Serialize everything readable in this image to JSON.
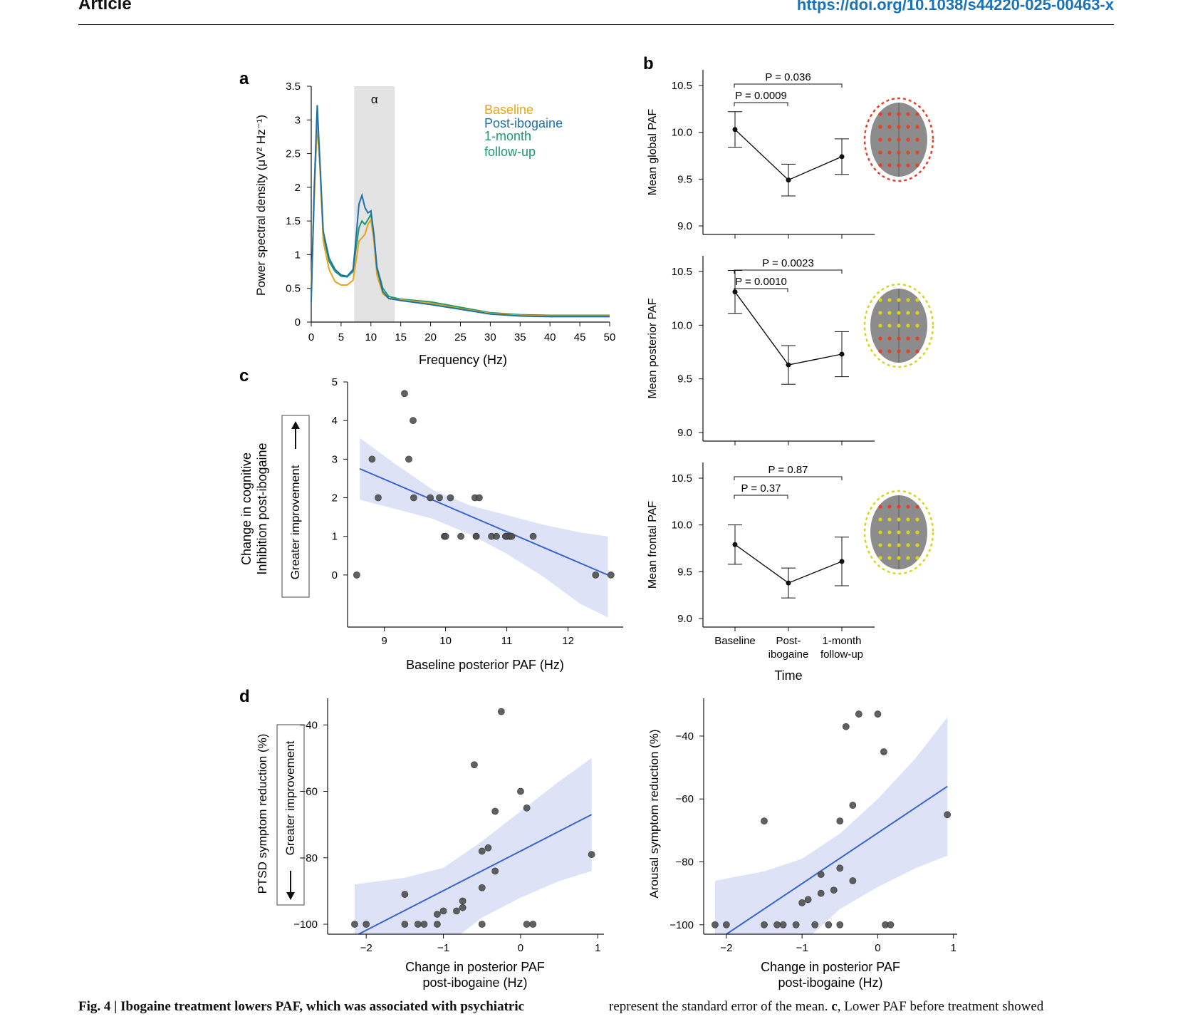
{
  "header": {
    "journal": "Article",
    "doi": "https://doi.org/10.1038/s44220-025-00463-x"
  },
  "panels": {
    "a": "a",
    "b": "b",
    "c": "c",
    "d": "d"
  },
  "chart_data": [
    {
      "panel": "a",
      "type": "line",
      "xlabel": "Frequency (Hz)",
      "ylabel": "Power spectral density (μV² Hz⁻¹)",
      "xlim": [
        0,
        50
      ],
      "ylim": [
        0,
        3.5
      ],
      "xticks": [
        0,
        5,
        10,
        15,
        20,
        25,
        30,
        35,
        40,
        45,
        50
      ],
      "yticks": [
        0,
        0.5,
        1,
        1.5,
        2,
        2.5,
        3,
        3.5
      ],
      "ytick_labels": [
        "0",
        "0.5",
        "1",
        "1.5",
        "2",
        "2.5",
        "3",
        "3.5"
      ],
      "band": {
        "label": "α",
        "from": 7.2,
        "to": 14
      },
      "legend": [
        "Baseline",
        "Post-ibogaine",
        "1-month",
        "follow-up"
      ],
      "colors": {
        "baseline": "#e8a317",
        "post": "#1f6fa8",
        "followup": "#1b9a6e",
        "band": "#e3e3e3"
      },
      "series": [
        {
          "name": "Baseline",
          "x": [
            0,
            0.5,
            1,
            1.5,
            2,
            3,
            4,
            5,
            6,
            7,
            7.5,
            8,
            8.5,
            9,
            9.5,
            10,
            10.5,
            11,
            12,
            13,
            15,
            20,
            25,
            30,
            35,
            40,
            45,
            50
          ],
          "values": [
            0.5,
            1.8,
            3.05,
            2.2,
            1.2,
            0.78,
            0.6,
            0.55,
            0.55,
            0.62,
            0.9,
            1.2,
            1.25,
            1.3,
            1.45,
            1.52,
            1.2,
            0.7,
            0.42,
            0.35,
            0.33,
            0.28,
            0.2,
            0.13,
            0.1,
            0.09,
            0.09,
            0.09
          ]
        },
        {
          "name": "Post-ibogaine",
          "x": [
            0,
            0.5,
            1,
            1.5,
            2,
            3,
            4,
            5,
            6,
            7,
            7.5,
            8,
            8.5,
            9,
            9.5,
            10,
            10.5,
            11,
            12,
            13,
            15,
            20,
            25,
            30,
            35,
            40,
            45,
            50
          ],
          "values": [
            0.3,
            2.0,
            3.22,
            2.3,
            1.35,
            0.95,
            0.78,
            0.7,
            0.68,
            0.78,
            1.25,
            1.75,
            1.88,
            1.7,
            1.62,
            1.65,
            1.3,
            0.8,
            0.45,
            0.35,
            0.32,
            0.26,
            0.19,
            0.12,
            0.09,
            0.08,
            0.08,
            0.08
          ]
        },
        {
          "name": "1-month follow-up",
          "x": [
            0,
            0.5,
            1,
            1.5,
            2,
            3,
            4,
            5,
            6,
            7,
            7.5,
            8,
            8.5,
            9,
            9.5,
            10,
            10.5,
            11,
            12,
            13,
            15,
            20,
            25,
            30,
            35,
            40,
            45,
            50
          ],
          "values": [
            0.45,
            1.9,
            2.95,
            2.25,
            1.3,
            0.9,
            0.75,
            0.68,
            0.67,
            0.75,
            1.1,
            1.4,
            1.5,
            1.45,
            1.52,
            1.6,
            1.3,
            0.82,
            0.5,
            0.38,
            0.34,
            0.3,
            0.22,
            0.14,
            0.11,
            0.1,
            0.1,
            0.1
          ]
        }
      ]
    },
    {
      "panel": "b",
      "type": "line",
      "xlabel": "Time",
      "categories": [
        "Baseline",
        "Post-\nibogaine",
        "1-month\nfollow-up"
      ],
      "ylim": [
        9.0,
        10.5
      ],
      "yticks": [
        "9.0",
        "9.5",
        "10.0",
        "10.5"
      ],
      "subplots": [
        {
          "ylabel": "Mean global PAF",
          "values": [
            10.03,
            9.49,
            9.74
          ],
          "sem": [
            0.19,
            0.17,
            0.19
          ],
          "brackets": [
            {
              "label": "P = 0.0009",
              "pair": [
                0,
                1
              ]
            },
            {
              "label": "P = 0.036",
              "pair": [
                0,
                2
              ]
            }
          ],
          "electrodes": "global"
        },
        {
          "ylabel": "Mean posterior PAF",
          "values": [
            10.31,
            9.63,
            9.73
          ],
          "sem": [
            0.2,
            0.18,
            0.21
          ],
          "brackets": [
            {
              "label": "P = 0.0010",
              "pair": [
                0,
                1
              ]
            },
            {
              "label": "P = 0.0023",
              "pair": [
                0,
                2
              ]
            }
          ],
          "electrodes": "posterior"
        },
        {
          "ylabel": "Mean frontal PAF",
          "values": [
            9.79,
            9.38,
            9.61
          ],
          "sem": [
            0.21,
            0.16,
            0.26
          ],
          "brackets": [
            {
              "label": "P  = 0.37",
              "pair": [
                0,
                1
              ]
            },
            {
              "label": "P = 0.87",
              "pair": [
                0,
                2
              ]
            }
          ],
          "electrodes": "frontal"
        }
      ]
    },
    {
      "panel": "c",
      "type": "scatter",
      "xlabel": "Baseline posterior PAF (Hz)",
      "ylabel": [
        "Change in cognitive",
        "Inhibition post-ibogaine"
      ],
      "arrow_label": "Greater improvement",
      "xticks": [
        9,
        10,
        11,
        12
      ],
      "yticks": [
        0,
        1,
        2,
        3,
        4,
        5
      ],
      "xlim": [
        8.4,
        12.9
      ],
      "ylim": [
        -1.35,
        5
      ],
      "points": [
        [
          8.55,
          0
        ],
        [
          8.8,
          3
        ],
        [
          8.9,
          2
        ],
        [
          9.33,
          4.7
        ],
        [
          9.4,
          3
        ],
        [
          9.47,
          4
        ],
        [
          9.48,
          2
        ],
        [
          9.75,
          2
        ],
        [
          9.9,
          2
        ],
        [
          9.98,
          1
        ],
        [
          10.0,
          1
        ],
        [
          10.08,
          2
        ],
        [
          10.25,
          1
        ],
        [
          10.48,
          2
        ],
        [
          10.5,
          1
        ],
        [
          10.5,
          1
        ],
        [
          10.55,
          2
        ],
        [
          10.75,
          1
        ],
        [
          10.83,
          1
        ],
        [
          10.98,
          1
        ],
        [
          11.0,
          1
        ],
        [
          11.05,
          1
        ],
        [
          11.08,
          1
        ],
        [
          11.43,
          1
        ],
        [
          12.45,
          0
        ],
        [
          12.7,
          0
        ]
      ],
      "fit": {
        "x": [
          8.6,
          12.65
        ],
        "y": [
          2.75,
          0.0
        ]
      },
      "ci": {
        "x": [
          8.6,
          9.2,
          9.8,
          10.4,
          11.0,
          11.6,
          12.2,
          12.65
        ],
        "lower": [
          1.95,
          1.7,
          1.45,
          1.05,
          0.55,
          -0.05,
          -0.75,
          -1.1
        ],
        "upper": [
          3.55,
          2.85,
          2.2,
          1.8,
          1.55,
          1.3,
          1.1,
          1.0
        ]
      },
      "colors": {
        "point": "#505050",
        "fit": "#3a63cf",
        "ci": "#dde2f7"
      }
    },
    {
      "panel": "d-left",
      "type": "scatter",
      "xlabel": [
        "Change in posterior PAF",
        "post-ibogaine (Hz)"
      ],
      "ylabel": "PTSD symptom reduction (%)",
      "arrow_label": "Greater improvement",
      "xticks": [
        -2,
        -1,
        0,
        1
      ],
      "yticks": [
        -40,
        -60,
        -80,
        -100
      ],
      "xticks_labels": [
        "−2",
        "−1",
        "0",
        "1"
      ],
      "yticks_labels": [
        "−40",
        "−60",
        "−80",
        "−100"
      ],
      "xlim": [
        -2.5,
        1.08
      ],
      "ylim": [
        -103,
        -32
      ],
      "points": [
        [
          -2.15,
          -100
        ],
        [
          -2.0,
          -100
        ],
        [
          -1.5,
          -91
        ],
        [
          -1.5,
          -100
        ],
        [
          -1.33,
          -100
        ],
        [
          -1.25,
          -100
        ],
        [
          -1.08,
          -100
        ],
        [
          -1.08,
          -97
        ],
        [
          -1.0,
          -96
        ],
        [
          -0.83,
          -96
        ],
        [
          -0.75,
          -95
        ],
        [
          -0.75,
          -93
        ],
        [
          -0.6,
          -52
        ],
        [
          -0.5,
          -78
        ],
        [
          -0.5,
          -89
        ],
        [
          -0.5,
          -100
        ],
        [
          -0.42,
          -77
        ],
        [
          -0.33,
          -66
        ],
        [
          -0.33,
          -84
        ],
        [
          -0.25,
          -36
        ],
        [
          0,
          -60
        ],
        [
          0.08,
          -65
        ],
        [
          0.08,
          -100
        ],
        [
          0.16,
          -100
        ],
        [
          0.92,
          -79
        ]
      ],
      "fit": {
        "x": [
          -2.1,
          0.92
        ],
        "y": [
          -103,
          -67
        ]
      },
      "ci": {
        "x": [
          -2.15,
          -1.5,
          -1.0,
          -0.5,
          0,
          0.5,
          0.92
        ],
        "lower": [
          -125,
          -115,
          -107,
          -98,
          -92,
          -87,
          -84
        ],
        "upper": [
          -88,
          -86,
          -83,
          -75,
          -66,
          -57,
          -50
        ]
      },
      "colors": {
        "point": "#505050",
        "fit": "#3a63cf",
        "ci": "#dde2f7"
      }
    },
    {
      "panel": "d-right",
      "type": "scatter",
      "xlabel": [
        "Change in posterior PAF",
        "post-ibogaine (Hz)"
      ],
      "ylabel": "Arousal symptom reduction (%)",
      "xticks": [
        -2,
        -1,
        0,
        1
      ],
      "yticks": [
        -40,
        -60,
        -80,
        -100
      ],
      "xticks_labels": [
        "−2",
        "−1",
        "0",
        "1"
      ],
      "yticks_labels": [
        "−40",
        "−60",
        "−80",
        "−100"
      ],
      "xlim": [
        -2.3,
        1.05
      ],
      "ylim": [
        -103,
        -28
      ],
      "points": [
        [
          -2.15,
          -100
        ],
        [
          -2.0,
          -100
        ],
        [
          -1.5,
          -67
        ],
        [
          -1.5,
          -100
        ],
        [
          -1.33,
          -100
        ],
        [
          -1.25,
          -100
        ],
        [
          -1.08,
          -100
        ],
        [
          -1.0,
          -93
        ],
        [
          -0.92,
          -92
        ],
        [
          -0.83,
          -100
        ],
        [
          -0.75,
          -90
        ],
        [
          -0.75,
          -84
        ],
        [
          -0.65,
          -100
        ],
        [
          -0.58,
          -89
        ],
        [
          -0.5,
          -67
        ],
        [
          -0.5,
          -82
        ],
        [
          -0.5,
          -100
        ],
        [
          -0.42,
          -37
        ],
        [
          -0.33,
          -62
        ],
        [
          -0.33,
          -86
        ],
        [
          -0.25,
          -33
        ],
        [
          0,
          -33
        ],
        [
          0.08,
          -45
        ],
        [
          0.1,
          -100
        ],
        [
          0.17,
          -100
        ],
        [
          0.92,
          -65
        ]
      ],
      "fit": {
        "x": [
          -2.0,
          0.92
        ],
        "y": [
          -103,
          -56
        ]
      },
      "ci": {
        "x": [
          -2.15,
          -1.5,
          -1.0,
          -0.5,
          0,
          0.5,
          0.92
        ],
        "lower": [
          -130,
          -118,
          -106,
          -95,
          -88,
          -82,
          -78
        ],
        "upper": [
          -86,
          -83,
          -79,
          -71,
          -60,
          -47,
          -34
        ]
      },
      "colors": {
        "point": "#505050",
        "fit": "#3a63cf",
        "ci": "#dde2f7"
      }
    }
  ],
  "caption": {
    "left_bold": "Fig. 4 | Ibogaine treatment lowers PAF, which was associated with psychiatric",
    "right_text": "represent the standard error of the mean. ",
    "right_bold": "c",
    "right_text2": ", Lower PAF before treatment showed"
  }
}
